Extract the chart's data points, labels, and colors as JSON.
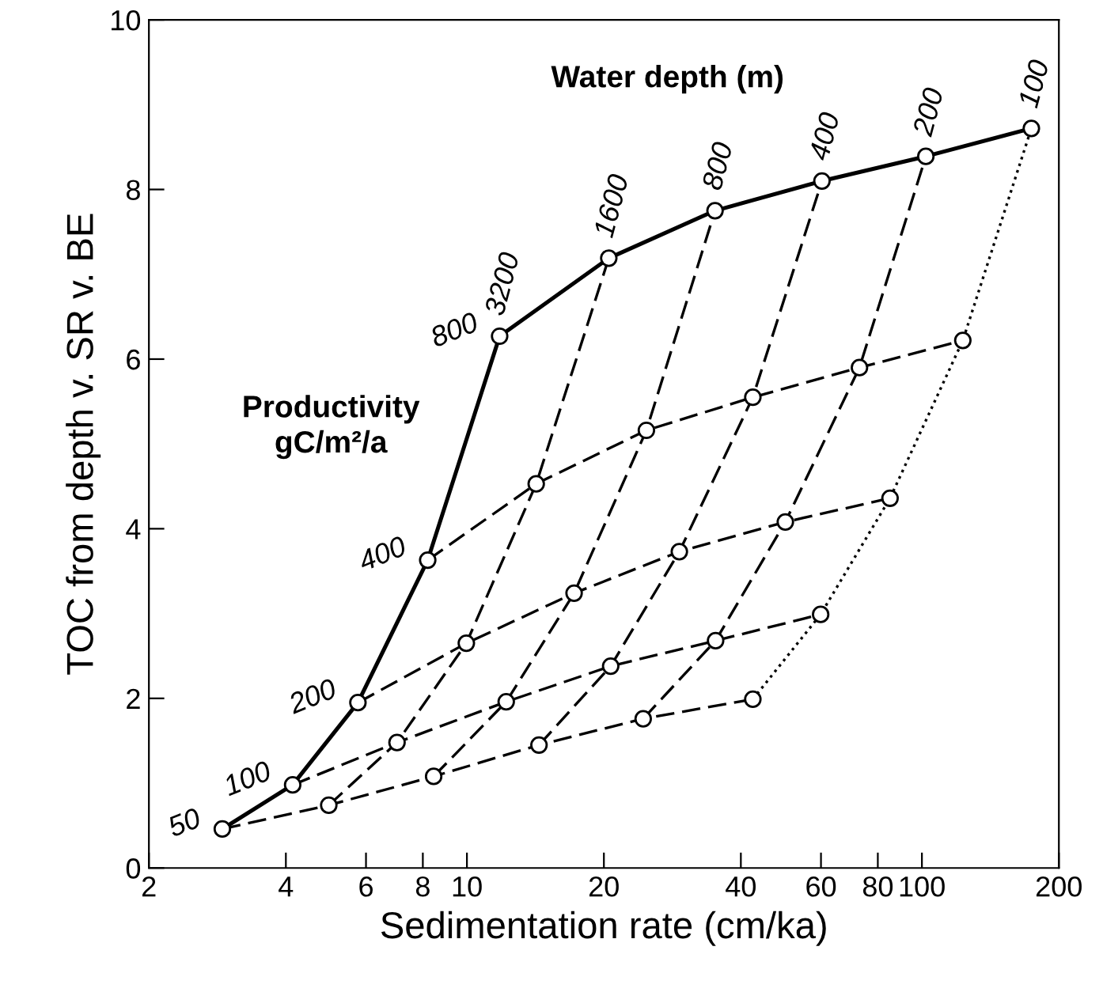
{
  "chart_data": {
    "type": "line",
    "xlabel": "Sedimentation rate (cm/ka)",
    "ylabel": "TOC from depth v. SR v. BE",
    "log": "x",
    "xlim": [
      2,
      200
    ],
    "ylim": [
      0,
      10
    ],
    "xticks": [
      2,
      4,
      6,
      8,
      10,
      20,
      40,
      60,
      80,
      100,
      200
    ],
    "yticks": [
      0,
      2,
      4,
      6,
      8,
      10
    ],
    "grid": false,
    "legend": false,
    "annotations": [
      "Water depth (m)",
      "Productivity\ngC/m²/a"
    ],
    "series": [
      {
        "name": "50",
        "color": "#000000",
        "line_style": "dashed",
        "marker": "circle",
        "x": [
          2.9,
          4.97,
          8.45,
          14.4,
          24.4,
          42.5
        ],
        "values": [
          0.46,
          0.74,
          1.08,
          1.45,
          1.76,
          1.99
        ]
      },
      {
        "name": "100",
        "color": "#000000",
        "line_style": "dashed",
        "marker": "circle",
        "x": [
          4.14,
          7.02,
          12.2,
          20.7,
          35.2,
          59.9
        ],
        "values": [
          0.98,
          1.48,
          1.96,
          2.38,
          2.68,
          2.99
        ]
      },
      {
        "name": "200",
        "color": "#000000",
        "line_style": "dashed",
        "marker": "circle",
        "x": [
          5.76,
          9.97,
          17.2,
          29.3,
          50.1,
          85.1
        ],
        "values": [
          1.95,
          2.65,
          3.24,
          3.73,
          4.08,
          4.36
        ]
      },
      {
        "name": "400",
        "color": "#000000",
        "line_style": "dashed",
        "marker": "circle",
        "x": [
          8.2,
          14.2,
          24.8,
          42.5,
          72.9,
          123
        ],
        "values": [
          3.63,
          4.53,
          5.16,
          5.55,
          5.9,
          6.22
        ]
      },
      {
        "name": "800",
        "color": "#000000",
        "line_style": "solid",
        "marker": "circle",
        "x": [
          11.8,
          20.5,
          35.1,
          60.3,
          102,
          174
        ],
        "values": [
          6.27,
          7.19,
          7.75,
          8.1,
          8.39,
          8.72
        ]
      },
      {
        "name": "3200",
        "color": "#000000",
        "line_style": "solid",
        "marker": "none",
        "x": [
          2.9,
          4.14,
          5.76,
          8.2,
          11.8
        ],
        "values": [
          0.46,
          0.98,
          1.95,
          3.63,
          6.27
        ]
      },
      {
        "name": "1600",
        "color": "#000000",
        "line_style": "dashed",
        "marker": "none",
        "x": [
          4.97,
          7.02,
          9.97,
          14.2,
          20.5
        ],
        "values": [
          0.74,
          1.48,
          2.65,
          4.53,
          7.19
        ]
      },
      {
        "name": "800",
        "color": "#000000",
        "line_style": "dashed",
        "marker": "none",
        "x": [
          8.45,
          12.2,
          17.2,
          24.8,
          35.1
        ],
        "values": [
          1.08,
          1.96,
          3.24,
          5.16,
          7.75
        ]
      },
      {
        "name": "400",
        "color": "#000000",
        "line_style": "dashed",
        "marker": "none",
        "x": [
          14.4,
          20.7,
          29.3,
          42.5,
          60.3
        ],
        "values": [
          1.45,
          2.38,
          3.73,
          5.55,
          8.1
        ]
      },
      {
        "name": "200",
        "color": "#000000",
        "line_style": "dashed",
        "marker": "none",
        "x": [
          24.4,
          35.2,
          50.1,
          72.9,
          102
        ],
        "values": [
          1.76,
          2.68,
          4.08,
          5.9,
          8.39
        ]
      },
      {
        "name": "100",
        "color": "#000000",
        "line_style": "dotted",
        "marker": "none",
        "x": [
          42.5,
          59.9,
          85.1,
          123,
          174
        ],
        "values": [
          1.99,
          2.99,
          4.36,
          6.22,
          8.72
        ]
      }
    ]
  }
}
